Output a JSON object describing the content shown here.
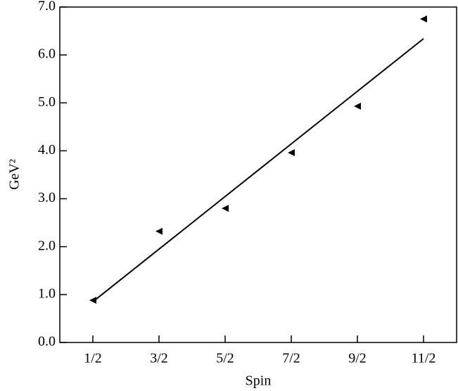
{
  "chart_data": {
    "type": "scatter",
    "xlabel": "Spin",
    "ylabel": "GeV²",
    "x": [
      0.5,
      1.5,
      2.5,
      3.5,
      4.5,
      5.5
    ],
    "values": [
      0.88,
      2.32,
      2.8,
      3.96,
      4.93,
      6.75
    ],
    "color": "#000000",
    "marker": "triangle-left",
    "fit": {
      "x": [
        0.5,
        5.5
      ],
      "values": [
        0.85,
        6.34
      ],
      "color": "#000000"
    },
    "xlim": [
      0,
      6
    ],
    "xticks": [
      {
        "value": 0.5,
        "label": "1/2"
      },
      {
        "value": 1.5,
        "label": "3/2"
      },
      {
        "value": 2.5,
        "label": "5/2"
      },
      {
        "value": 3.5,
        "label": "7/2"
      },
      {
        "value": 4.5,
        "label": "9/2"
      },
      {
        "value": 5.5,
        "label": "11/2"
      }
    ],
    "ylim": [
      0,
      7
    ],
    "yticks": [
      {
        "value": 0,
        "label": "0.0"
      },
      {
        "value": 1,
        "label": "1.0"
      },
      {
        "value": 2,
        "label": "2.0"
      },
      {
        "value": 3,
        "label": "3.0"
      },
      {
        "value": 4,
        "label": "4.0"
      },
      {
        "value": 5,
        "label": "5.0"
      },
      {
        "value": 6,
        "label": "6.0"
      },
      {
        "value": 7,
        "label": "7.0"
      }
    ],
    "grid": false
  }
}
